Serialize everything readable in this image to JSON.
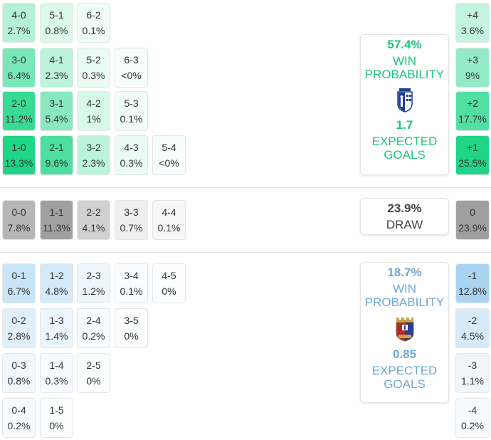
{
  "home": {
    "grid": [
      [
        [
          "4-0",
          "2.7%",
          2.7
        ],
        [
          "5-1",
          "0.8%",
          0.8
        ],
        [
          "6-2",
          "0.1%",
          0.1
        ]
      ],
      [
        [
          "3-0",
          "6.4%",
          6.4
        ],
        [
          "4-1",
          "2.3%",
          2.3
        ],
        [
          "5-2",
          "0.3%",
          0.3
        ],
        [
          "6-3",
          "<0%",
          0
        ]
      ],
      [
        [
          "2-0",
          "11.2%",
          11.2
        ],
        [
          "3-1",
          "5.4%",
          5.4
        ],
        [
          "4-2",
          "1%",
          1
        ],
        [
          "5-3",
          "0.1%",
          0.1
        ]
      ],
      [
        [
          "1-0",
          "13.3%",
          13.3
        ],
        [
          "2-1",
          "9.6%",
          9.6
        ],
        [
          "3-2",
          "2.3%",
          2.3
        ],
        [
          "4-3",
          "0.3%",
          0.3
        ],
        [
          "5-4",
          "<0%",
          0
        ]
      ]
    ],
    "margins": [
      [
        "+4",
        "3.6%",
        3.6
      ],
      [
        "+3",
        "9%",
        9
      ],
      [
        "+2",
        "17.7%",
        17.7
      ],
      [
        "+1",
        "25.5%",
        25.5
      ]
    ],
    "win_probability": "57.4%",
    "win_label_1": "WIN",
    "win_label_2": "PROBABILITY",
    "expected_goals": "1.7",
    "xg_label_1": "EXPECTED",
    "xg_label_2": "GOALS",
    "color": "#22c47a",
    "crest_icon": "home-team-crest-icon"
  },
  "draw": {
    "grid": [
      [
        [
          "0-0",
          "7.8%",
          7.8
        ],
        [
          "1-1",
          "11.3%",
          11.3
        ],
        [
          "2-2",
          "4.1%",
          4.1
        ],
        [
          "3-3",
          "0.7%",
          0.7
        ],
        [
          "4-4",
          "0.1%",
          0.1
        ]
      ]
    ],
    "margins": [
      [
        "0",
        "23.9%",
        23.9
      ]
    ],
    "probability": "23.9%",
    "label": "DRAW",
    "color": "#444444"
  },
  "away": {
    "grid": [
      [
        [
          "0-1",
          "6.7%",
          6.7
        ],
        [
          "1-2",
          "4.8%",
          4.8
        ],
        [
          "2-3",
          "1.2%",
          1.2
        ],
        [
          "3-4",
          "0.1%",
          0.1
        ],
        [
          "4-5",
          "0%",
          0
        ]
      ],
      [
        [
          "0-2",
          "2.8%",
          2.8
        ],
        [
          "1-3",
          "1.4%",
          1.4
        ],
        [
          "2-4",
          "0.2%",
          0.2
        ],
        [
          "3-5",
          "0%",
          0
        ]
      ],
      [
        [
          "0-3",
          "0.8%",
          0.8
        ],
        [
          "1-4",
          "0.3%",
          0.3
        ],
        [
          "2-5",
          "0%",
          0
        ]
      ],
      [
        [
          "0-4",
          "0.2%",
          0.2
        ],
        [
          "1-5",
          "0%",
          0
        ]
      ]
    ],
    "margins": [
      [
        "-1",
        "12.8%",
        12.8
      ],
      [
        "-2",
        "4.5%",
        4.5
      ],
      [
        "-3",
        "1.1%",
        1.1
      ],
      [
        "-4",
        "0.2%",
        0.2
      ]
    ],
    "win_probability": "18.7%",
    "win_label_1": "WIN",
    "win_label_2": "PROBABILITY",
    "expected_goals": "0.85",
    "xg_label_1": "EXPECTED",
    "xg_label_2": "GOALS",
    "color": "#6fa8d6",
    "crest_icon": "away-team-crest-icon"
  }
}
